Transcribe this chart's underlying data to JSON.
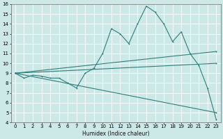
{
  "xlabel": "Humidex (Indice chaleur)",
  "xlim": [
    -0.5,
    23.5
  ],
  "ylim": [
    4,
    16
  ],
  "xticks": [
    0,
    1,
    2,
    3,
    4,
    5,
    6,
    7,
    8,
    9,
    10,
    11,
    12,
    13,
    14,
    15,
    16,
    17,
    18,
    19,
    20,
    21,
    22,
    23
  ],
  "yticks": [
    4,
    5,
    6,
    7,
    8,
    9,
    10,
    11,
    12,
    13,
    14,
    15,
    16
  ],
  "bg_color": "#cce9e8",
  "line_color": "#2e7d78",
  "grid_color": "#ffffff",
  "curve_main_x": [
    0,
    1,
    2,
    3,
    4,
    5,
    6,
    7,
    8,
    9,
    10,
    11,
    12,
    13,
    14,
    15,
    16,
    17,
    18,
    19,
    20,
    21,
    22,
    23
  ],
  "curve_main_y": [
    9.0,
    8.5,
    8.8,
    8.7,
    8.5,
    8.5,
    8.0,
    7.5,
    9.0,
    9.5,
    11.0,
    13.5,
    13.0,
    12.0,
    14.0,
    15.8,
    15.2,
    14.0,
    12.2,
    13.2,
    11.0,
    9.8,
    7.5,
    4.3
  ],
  "line1_x": [
    0,
    23
  ],
  "line1_y": [
    9.0,
    11.2
  ],
  "line2_x": [
    0,
    23
  ],
  "line2_y": [
    9.0,
    10.0
  ],
  "line3_x": [
    0,
    23
  ],
  "line3_y": [
    9.0,
    5.0
  ]
}
